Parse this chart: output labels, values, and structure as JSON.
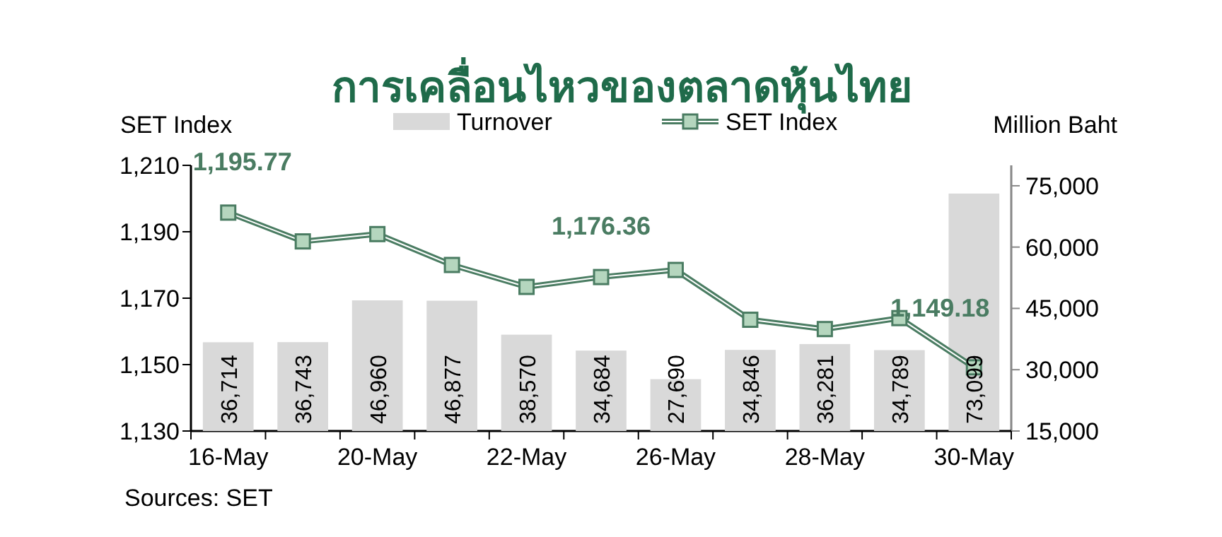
{
  "chart_data": {
    "type": "bar",
    "title": "การเคลื่อนไหวของตลาดหุ้นไทย",
    "ylabel": "SET Index",
    "y2label": "Million Baht",
    "categories": [
      "16-May",
      null,
      "20-May",
      null,
      "22-May",
      null,
      "26-May",
      null,
      "28-May",
      null,
      "30-May"
    ],
    "series": [
      {
        "name": "Turnover",
        "axis": "y2",
        "color": "#d9d9d9",
        "values": [
          36714,
          36743,
          46960,
          46877,
          38570,
          34684,
          27690,
          34846,
          36281,
          34789,
          73099
        ],
        "value_labels": [
          "36,714",
          "36,743",
          "46,960",
          "46,877",
          "38,570",
          "34,684",
          "27,690",
          "34,846",
          "36,281",
          "34,789",
          "73,099"
        ]
      },
      {
        "name": "SET Index",
        "type": "line",
        "axis": "y",
        "color": "#4a7c62",
        "marker": "square",
        "values": [
          1195.77,
          1187.1,
          1189.3,
          1180.0,
          1173.4,
          1176.36,
          1178.5,
          1163.5,
          1160.7,
          1164.0,
          1149.18
        ],
        "value_labels": [
          "1,195.77",
          null,
          null,
          null,
          null,
          "1,176.36",
          null,
          null,
          null,
          null,
          "1,149.18"
        ]
      }
    ],
    "ylim": [
      1130,
      1210
    ],
    "yticks": [
      {
        "value": 1130,
        "label": "1,130"
      },
      {
        "value": 1150,
        "label": "1,150"
      },
      {
        "value": 1170,
        "label": "1,170"
      },
      {
        "value": 1190,
        "label": "1,190"
      },
      {
        "value": 1210,
        "label": "1,210"
      }
    ],
    "y2lim": [
      15000,
      80000
    ],
    "y2ticks": [
      {
        "value": 15000,
        "label": "15,000"
      },
      {
        "value": 30000,
        "label": "30,000"
      },
      {
        "value": 45000,
        "label": "45,000"
      },
      {
        "value": 60000,
        "label": "60,000"
      },
      {
        "value": 75000,
        "label": "75,000"
      }
    ],
    "legend": "top",
    "annotations": [
      "Sources: SET"
    ]
  }
}
